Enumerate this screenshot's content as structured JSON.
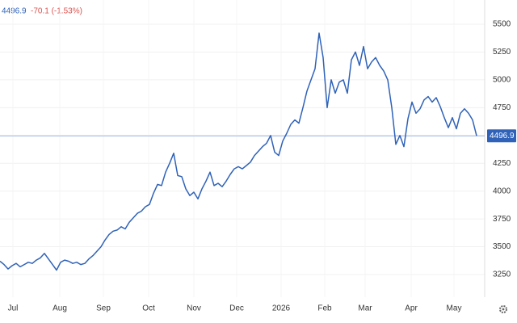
{
  "chart_data": {
    "type": "line",
    "header_last": 4496.9,
    "header_change": "-70.1 (-1.53%)",
    "last": 4496.9,
    "series": [
      {
        "color": "#2f62b8",
        "values": [
          3370,
          3340,
          3300,
          3330,
          3350,
          3320,
          3340,
          3360,
          3350,
          3380,
          3400,
          3440,
          3390,
          3340,
          3290,
          3360,
          3380,
          3370,
          3350,
          3360,
          3340,
          3350,
          3390,
          3420,
          3460,
          3500,
          3560,
          3610,
          3640,
          3650,
          3680,
          3660,
          3720,
          3760,
          3800,
          3820,
          3860,
          3880,
          3980,
          4060,
          4050,
          4170,
          4250,
          4340,
          4140,
          4130,
          4020,
          3960,
          3990,
          3930,
          4020,
          4090,
          4170,
          4050,
          4070,
          4040,
          4090,
          4150,
          4200,
          4220,
          4200,
          4230,
          4260,
          4320,
          4360,
          4400,
          4430,
          4500,
          4350,
          4320,
          4450,
          4520,
          4600,
          4640,
          4610,
          4750,
          4900,
          5000,
          5100,
          5420,
          5200,
          4750,
          5000,
          4880,
          4980,
          5000,
          4880,
          5180,
          5250,
          5130,
          5300,
          5100,
          5160,
          5200,
          5130,
          5080,
          5000,
          4750,
          4420,
          4500,
          4400,
          4650,
          4800,
          4700,
          4740,
          4820,
          4850,
          4800,
          4840,
          4760,
          4660,
          4570,
          4660,
          4560,
          4700,
          4740,
          4700,
          4640,
          4496.9
        ]
      }
    ],
    "xlim": [
      0,
      118
    ],
    "xticks": [
      {
        "value": 3.2,
        "label": "Jul"
      },
      {
        "value": 14.8,
        "label": "Aug"
      },
      {
        "value": 25.6,
        "label": "Sep"
      },
      {
        "value": 36.8,
        "label": "Oct"
      },
      {
        "value": 48,
        "label": "Nov"
      },
      {
        "value": 58.6,
        "label": "Dec"
      },
      {
        "value": 69.6,
        "label": "2026"
      },
      {
        "value": 80.4,
        "label": "Feb"
      },
      {
        "value": 90.4,
        "label": "Mar"
      },
      {
        "value": 101.8,
        "label": "Apr"
      },
      {
        "value": 112.4,
        "label": "May"
      }
    ],
    "ylim": [
      3250,
      5500
    ],
    "yticks": [
      3250,
      3500,
      3750,
      4000,
      4250,
      4500,
      4750,
      5000,
      5250,
      5500
    ],
    "grid": true
  }
}
